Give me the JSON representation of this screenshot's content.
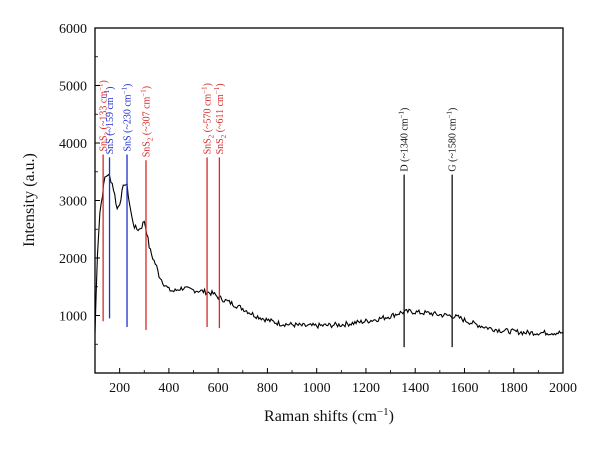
{
  "chart_data": {
    "type": "line",
    "title": "",
    "xlabel": "Raman shifts (cm",
    "xlabel_sup": "−1",
    "xlabel_close": ")",
    "ylabel": "Intensity (a.u.)",
    "xlim": [
      100,
      2000
    ],
    "ylim": [
      0,
      6000
    ],
    "x_ticks": [
      200,
      400,
      600,
      800,
      1000,
      1200,
      1400,
      1600,
      1800,
      2000
    ],
    "y_ticks": [
      1000,
      2000,
      3000,
      4000,
      5000,
      6000
    ],
    "grid": false,
    "legend": "none",
    "series": [
      {
        "color": "#000000",
        "x": [
          100,
          110,
          120,
          130,
          140,
          150,
          160,
          170,
          180,
          190,
          200,
          210,
          220,
          230,
          240,
          250,
          260,
          270,
          280,
          290,
          300,
          310,
          320,
          330,
          340,
          350,
          360,
          380,
          400,
          420,
          440,
          460,
          480,
          500,
          520,
          540,
          560,
          580,
          600,
          620,
          650,
          700,
          750,
          800,
          850,
          900,
          950,
          1000,
          1050,
          1100,
          1150,
          1200,
          1250,
          1300,
          1340,
          1380,
          1420,
          1460,
          1500,
          1540,
          1560,
          1580,
          1600,
          1650,
          1700,
          1750,
          1800,
          1850,
          1900,
          1950,
          2000
        ],
        "values": [
          700,
          2100,
          2800,
          3100,
          3400,
          3450,
          3400,
          3300,
          3100,
          2850,
          2950,
          3150,
          3300,
          3250,
          2950,
          2700,
          2550,
          2500,
          2500,
          2550,
          2650,
          2450,
          2200,
          2050,
          1950,
          1850,
          1700,
          1550,
          1450,
          1420,
          1460,
          1480,
          1450,
          1440,
          1430,
          1420,
          1400,
          1380,
          1320,
          1280,
          1220,
          1120,
          1000,
          920,
          860,
          840,
          820,
          820,
          830,
          840,
          870,
          900,
          940,
          990,
          1050,
          1070,
          1050,
          1040,
          1010,
          1000,
          980,
          960,
          920,
          840,
          780,
          740,
          720,
          700,
          700,
          700,
          700
        ]
      }
    ],
    "annotations": [
      {
        "x": 133,
        "y_bottom": 900,
        "y_top": 3800,
        "color": "#d42a2a",
        "label": "SnS",
        "sub": "2",
        "detail": " (~133 cm",
        "sup": "−1",
        "close": ")"
      },
      {
        "x": 159,
        "y_bottom": 950,
        "y_top": 3750,
        "color": "#1f2fcf",
        "label": "SnS",
        "sub": "",
        "detail": " (~159 cm",
        "sup": "−1",
        "close": ")"
      },
      {
        "x": 230,
        "y_bottom": 800,
        "y_top": 3800,
        "color": "#1f2fcf",
        "label": "SnS",
        "sub": "",
        "detail": " (~230 cm",
        "sup": "−1",
        "close": ")"
      },
      {
        "x": 307,
        "y_bottom": 750,
        "y_top": 3700,
        "color": "#d42a2a",
        "label": "SnS",
        "sub": "2",
        "detail": " (~307 cm",
        "sup": "−1",
        "close": ")"
      },
      {
        "x": 555,
        "y_bottom": 800,
        "y_top": 3750,
        "color": "#d42a2a",
        "label": "SnS",
        "sub": "2",
        "detail": " (~570 cm",
        "sup": "−1",
        "close": ")"
      },
      {
        "x": 605,
        "y_bottom": 780,
        "y_top": 3750,
        "color": "#d42a2a",
        "label": "SnS",
        "sub": "2",
        "detail": " (~611 cm",
        "sup": "−1",
        "close": ")"
      },
      {
        "x": 1355,
        "y_bottom": 450,
        "y_top": 3450,
        "color": "#111111",
        "label": "D",
        "sub": "",
        "detail": " (~1340 cm",
        "sup": "−1",
        "close": ")"
      },
      {
        "x": 1550,
        "y_bottom": 450,
        "y_top": 3450,
        "color": "#111111",
        "label": "G",
        "sub": "",
        "detail": " (~1580 cm",
        "sup": "−1",
        "close": ")"
      }
    ]
  }
}
